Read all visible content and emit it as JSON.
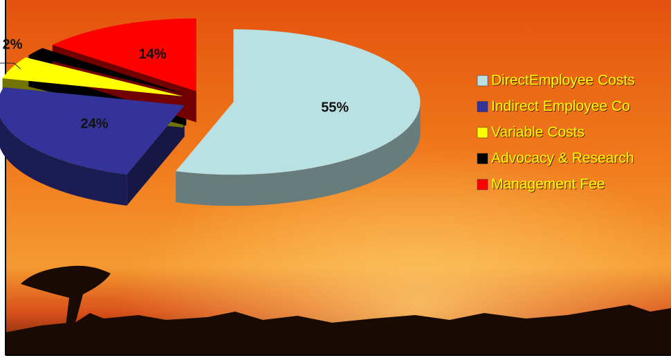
{
  "chart_data": {
    "type": "pie",
    "categories": [
      "DirectEmployee Costs",
      "Indirect Employee Co",
      "Variable Costs",
      "Advocacy & Research",
      "Management Fee"
    ],
    "values": [
      55,
      24,
      5,
      2,
      14
    ],
    "value_labels": [
      "55%",
      "24%",
      "%",
      "2%",
      "14%"
    ],
    "colors": [
      "#b9e1e3",
      "#33339a",
      "#ffff00",
      "#000000",
      "#ff0000"
    ],
    "legend": "right"
  }
}
